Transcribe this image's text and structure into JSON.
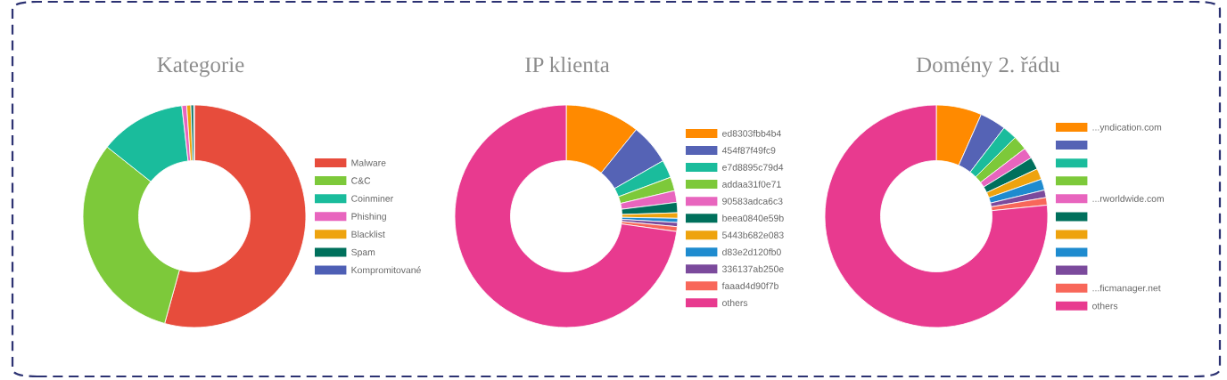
{
  "chart_data": [
    {
      "type": "donut",
      "title": "Kategorie",
      "categories": [
        "Malware",
        "C&C",
        "Coinminer",
        "Phishing",
        "Blacklist",
        "Spam",
        "Kompromitované"
      ],
      "values": [
        54.3,
        31.4,
        12.5,
        0.7,
        0.6,
        0.4,
        0.1
      ],
      "colors": [
        "#e74c3c",
        "#7dc93a",
        "#1abc9c",
        "#e865be",
        "#eea30e",
        "#00705c",
        "#4e5fb5"
      ],
      "legend": "right"
    },
    {
      "type": "donut",
      "title": "IP klienta",
      "categories": [
        "ed8303fbb4b4",
        "454f87f49fc9",
        "e7d8895c79d4",
        "addaa31f0e71",
        "90583adca6c3",
        "beea0840e59b",
        "5443b682e083",
        "d83e2d120fb0",
        "336137ab250e",
        "faaad4d90f7b",
        "others"
      ],
      "values": [
        10.8,
        5.9,
        2.6,
        2.0,
        1.7,
        1.5,
        0.8,
        0.6,
        0.6,
        0.7,
        72.8
      ],
      "colors": [
        "#ff8a00",
        "#5563b5",
        "#1abc9c",
        "#7dc93a",
        "#e865be",
        "#00705c",
        "#eea30e",
        "#1e8bcf",
        "#7b4a9c",
        "#f8675a",
        "#e83a8f"
      ],
      "legend": "right"
    },
    {
      "type": "donut",
      "title": "Domény 2. řádu",
      "categories": [
        "...yndication.com",
        null,
        null,
        null,
        "...rworldwide.com",
        null,
        null,
        null,
        null,
        "...ficmanager.net",
        "others"
      ],
      "values": [
        6.6,
        3.8,
        2.1,
        2.1,
        1.6,
        1.8,
        1.6,
        1.6,
        1.1,
        1.1,
        76.6
      ],
      "colors": [
        "#ff8a00",
        "#5563b5",
        "#1abc9c",
        "#7dc93a",
        "#e865be",
        "#00705c",
        "#eea30e",
        "#1e8bcf",
        "#7b4a9c",
        "#f8675a",
        "#e83a8f"
      ],
      "legend": "right"
    }
  ]
}
